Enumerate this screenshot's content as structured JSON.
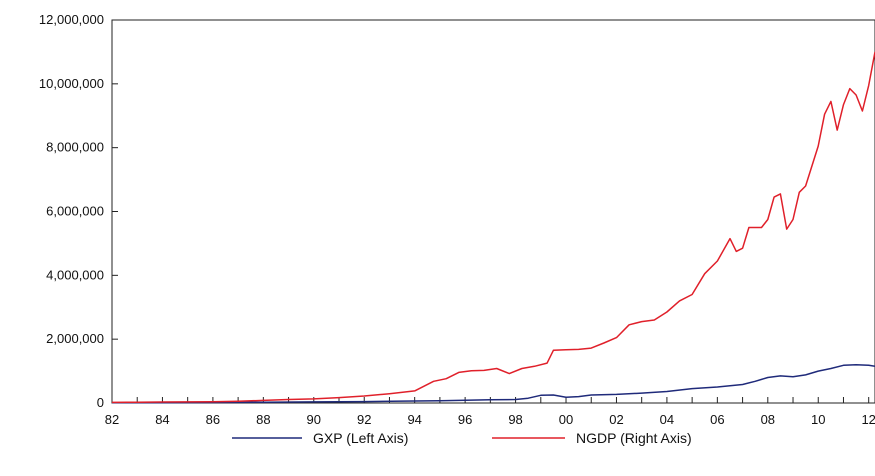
{
  "chart_data": {
    "type": "line",
    "title": "",
    "xlabel": "",
    "ylabel": "",
    "ylim": [
      0,
      12000000
    ],
    "xlim": [
      1982,
      2012.25
    ],
    "x_tick_labels": [
      "82",
      "84",
      "86",
      "88",
      "90",
      "92",
      "94",
      "96",
      "98",
      "00",
      "02",
      "04",
      "06",
      "08",
      "10",
      "12"
    ],
    "x_tick_values": [
      1982,
      1984,
      1986,
      1988,
      1990,
      1992,
      1994,
      1996,
      1998,
      2000,
      2002,
      2004,
      2006,
      2008,
      2010,
      2012
    ],
    "y_tick_labels": [
      "0",
      "2,000,000",
      "4,000,000",
      "6,000,000",
      "8,000,000",
      "10,000,000",
      "12,000,000"
    ],
    "y_tick_values": [
      0,
      2000000,
      4000000,
      6000000,
      8000000,
      10000000,
      12000000
    ],
    "grid": false,
    "legend_position": "bottom",
    "series": [
      {
        "name": "GXP (Left Axis)",
        "color": "#1f2a7a",
        "points": [
          [
            1982.0,
            5000
          ],
          [
            1984.0,
            10000
          ],
          [
            1986.0,
            15000
          ],
          [
            1988.0,
            25000
          ],
          [
            1990.0,
            35000
          ],
          [
            1992.0,
            45000
          ],
          [
            1993.5,
            60000
          ],
          [
            1995.0,
            70000
          ],
          [
            1996.0,
            85000
          ],
          [
            1997.0,
            100000
          ],
          [
            1998.0,
            110000
          ],
          [
            1998.5,
            150000
          ],
          [
            1999.0,
            240000
          ],
          [
            1999.5,
            250000
          ],
          [
            2000.0,
            180000
          ],
          [
            2000.5,
            200000
          ],
          [
            2001.0,
            250000
          ],
          [
            2002.0,
            270000
          ],
          [
            2003.0,
            310000
          ],
          [
            2004.0,
            360000
          ],
          [
            2005.0,
            450000
          ],
          [
            2006.0,
            500000
          ],
          [
            2007.0,
            580000
          ],
          [
            2007.5,
            680000
          ],
          [
            2008.0,
            800000
          ],
          [
            2008.5,
            850000
          ],
          [
            2009.0,
            820000
          ],
          [
            2009.5,
            880000
          ],
          [
            2010.0,
            1000000
          ],
          [
            2010.5,
            1080000
          ],
          [
            2011.0,
            1180000
          ],
          [
            2011.5,
            1200000
          ],
          [
            2012.0,
            1180000
          ],
          [
            2012.25,
            1150000
          ]
        ]
      },
      {
        "name": "NGDP (Right Axis)",
        "color": "#e0202a",
        "points": [
          [
            1982.0,
            20000
          ],
          [
            1983.0,
            25000
          ],
          [
            1984.0,
            30000
          ],
          [
            1985.0,
            35000
          ],
          [
            1986.0,
            40000
          ],
          [
            1987.0,
            55000
          ],
          [
            1988.0,
            80000
          ],
          [
            1989.0,
            110000
          ],
          [
            1990.0,
            130000
          ],
          [
            1991.0,
            170000
          ],
          [
            1992.0,
            220000
          ],
          [
            1993.0,
            290000
          ],
          [
            1994.0,
            380000
          ],
          [
            1994.75,
            680000
          ],
          [
            1995.25,
            760000
          ],
          [
            1995.75,
            960000
          ],
          [
            1996.25,
            1010000
          ],
          [
            1996.75,
            1020000
          ],
          [
            1997.25,
            1080000
          ],
          [
            1997.75,
            920000
          ],
          [
            1998.25,
            1080000
          ],
          [
            1998.75,
            1150000
          ],
          [
            1999.25,
            1250000
          ],
          [
            1999.5,
            1650000
          ],
          [
            2000.0,
            1670000
          ],
          [
            2000.5,
            1680000
          ],
          [
            2001.0,
            1720000
          ],
          [
            2001.5,
            1880000
          ],
          [
            2002.0,
            2050000
          ],
          [
            2002.5,
            2450000
          ],
          [
            2003.0,
            2550000
          ],
          [
            2003.5,
            2600000
          ],
          [
            2004.0,
            2850000
          ],
          [
            2004.5,
            3200000
          ],
          [
            2005.0,
            3400000
          ],
          [
            2005.5,
            4050000
          ],
          [
            2006.0,
            4450000
          ],
          [
            2006.5,
            5150000
          ],
          [
            2006.75,
            4750000
          ],
          [
            2007.0,
            4850000
          ],
          [
            2007.25,
            5500000
          ],
          [
            2007.75,
            5500000
          ],
          [
            2008.0,
            5750000
          ],
          [
            2008.25,
            6450000
          ],
          [
            2008.5,
            6550000
          ],
          [
            2008.75,
            5450000
          ],
          [
            2009.0,
            5750000
          ],
          [
            2009.25,
            6600000
          ],
          [
            2009.5,
            6800000
          ],
          [
            2010.0,
            8050000
          ],
          [
            2010.25,
            9050000
          ],
          [
            2010.5,
            9450000
          ],
          [
            2010.75,
            8550000
          ],
          [
            2011.0,
            9350000
          ],
          [
            2011.25,
            9850000
          ],
          [
            2011.5,
            9650000
          ],
          [
            2011.75,
            9150000
          ],
          [
            2012.0,
            9950000
          ],
          [
            2012.25,
            11000000
          ]
        ]
      }
    ]
  }
}
